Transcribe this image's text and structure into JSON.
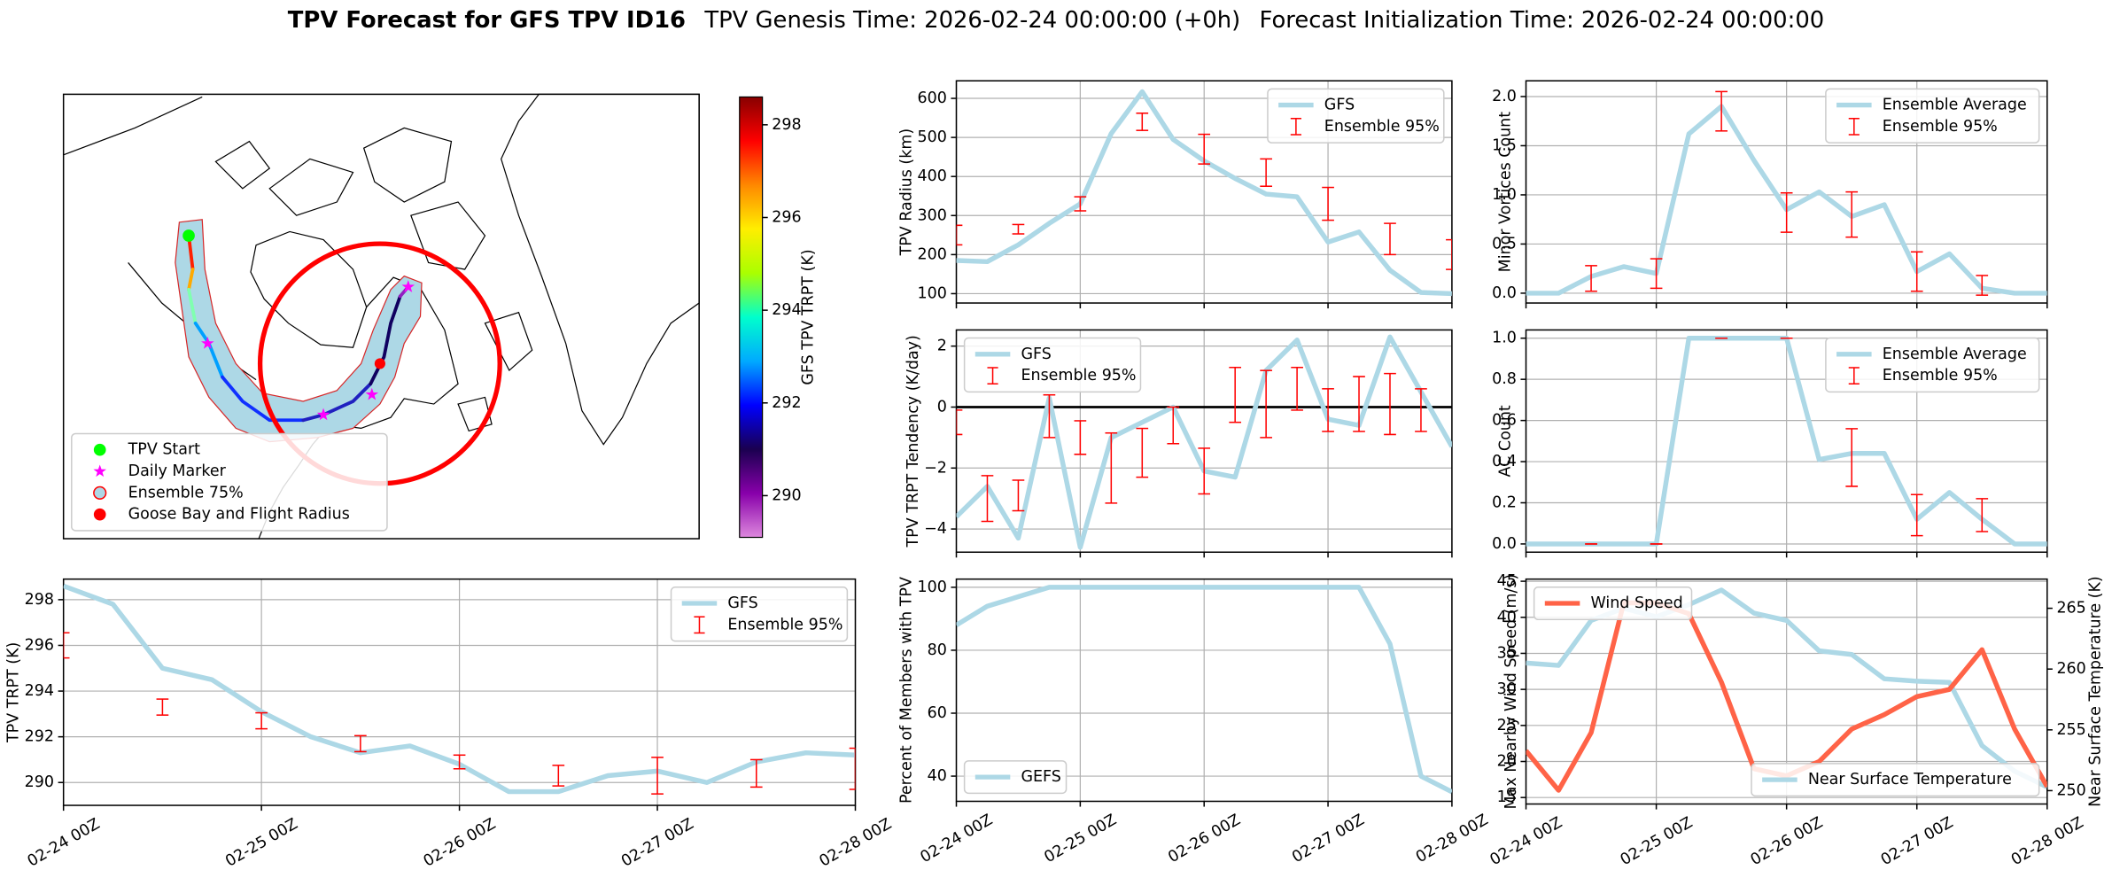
{
  "title_parts": [
    "TPV Forecast for GFS TPV ID16",
    "TPV Genesis Time: 2026-02-24 00:00:00 (+0h)",
    "Forecast Initialization Time: 2026-02-24 00:00:00"
  ],
  "chart_data": [
    {
      "type": "map",
      "legend": [
        {
          "label": "TPV Start",
          "color": "#00ff00",
          "marker": "circle"
        },
        {
          "label": "Daily Marker",
          "color": "#ff00ff",
          "marker": "star"
        },
        {
          "label": "Ensemble 75%",
          "color": "#add8e6",
          "edgecolor": "#ff0000",
          "marker": "circle"
        },
        {
          "label": "Goose Bay and Flight Radius",
          "color": "#ff0000",
          "marker": "circle"
        }
      ],
      "legend_corner": "lower left",
      "colorbar": {
        "label": "GFS TPV TRPT (K)",
        "lim": [
          289.1,
          298.6
        ],
        "ticks": [
          290,
          292,
          294,
          296,
          298
        ],
        "colors": [
          "#dd88dd",
          "#8800aa",
          "#1a0050",
          "#0000ff",
          "#00aaff",
          "#00ffcc",
          "#aaff00",
          "#ffee00",
          "#ff8800",
          "#ff0000",
          "#880000"
        ]
      }
    },
    {
      "type": "line",
      "ylabel": "TPV TRPT (K)",
      "xlim": [
        0,
        96
      ],
      "ylim": [
        289,
        298.9
      ],
      "xticks": [
        {
          "value": 0,
          "label": "02-24 00Z"
        },
        {
          "value": 24,
          "label": "02-25 00Z"
        },
        {
          "value": 48,
          "label": "02-26 00Z"
        },
        {
          "value": 72,
          "label": "02-27 00Z"
        },
        {
          "value": 96,
          "label": "02-28 00Z"
        }
      ],
      "yticks": [
        290,
        292,
        294,
        296,
        298
      ],
      "grid": true,
      "legend": "upper right",
      "x": [
        0,
        6,
        12,
        18,
        24,
        30,
        36,
        42,
        48,
        54,
        60,
        66,
        72,
        78,
        84,
        90,
        96
      ],
      "series": [
        {
          "name": "GFS",
          "color": "#add8e6",
          "values": [
            298.6,
            297.8,
            295,
            294.5,
            293.1,
            292,
            291.3,
            291.6,
            290.8,
            289.6,
            289.6,
            290.3,
            290.5,
            290,
            290.9,
            291.3,
            291.2
          ]
        }
      ],
      "errorbars": {
        "name": "Ensemble 95%",
        "color": "#ff0000",
        "x": [
          0,
          12,
          24,
          36,
          48,
          60,
          72,
          84,
          96
        ],
        "values": [
          296.0,
          293.3,
          292.7,
          291.7,
          290.9,
          290.3,
          290.3,
          290.4,
          290.6
        ],
        "errors": [
          0.55,
          0.35,
          0.35,
          0.35,
          0.3,
          0.45,
          0.8,
          0.6,
          0.9
        ]
      }
    },
    {
      "type": "line",
      "ylabel": "TPV Radius (km)",
      "xlim": [
        0,
        96
      ],
      "ylim": [
        76,
        645
      ],
      "xticks": [
        0,
        24,
        48,
        72,
        96
      ],
      "yticks": [
        100,
        200,
        300,
        400,
        500,
        600
      ],
      "grid": true,
      "legend": "upper right",
      "x": [
        0,
        6,
        12,
        18,
        24,
        30,
        36,
        42,
        48,
        54,
        60,
        66,
        72,
        78,
        84,
        90,
        96
      ],
      "series": [
        {
          "name": "GFS",
          "color": "#add8e6",
          "values": [
            185,
            182,
            225,
            280,
            330,
            510,
            617,
            495,
            440,
            395,
            355,
            348,
            232,
            258,
            160,
            103,
            100
          ]
        }
      ],
      "errorbars": {
        "name": "Ensemble 95%",
        "color": "#ff0000",
        "x": [
          0,
          12,
          24,
          36,
          48,
          60,
          72,
          84,
          96
        ],
        "values": [
          250,
          265,
          330,
          540,
          470,
          410,
          330,
          240,
          200
        ],
        "errors": [
          25,
          12,
          18,
          22,
          38,
          35,
          42,
          40,
          38
        ]
      }
    },
    {
      "type": "line",
      "ylabel": "TPV TRPT Tendency (K/day)",
      "xlim": [
        0,
        96
      ],
      "ylim": [
        -4.76,
        2.53
      ],
      "xticks": [
        0,
        24,
        48,
        72,
        96
      ],
      "yticks": [
        {
          "value": -4,
          "label": "−4"
        },
        {
          "value": -2,
          "label": "−2"
        },
        0,
        2
      ],
      "grid": true,
      "legend": "upper left",
      "zero_line": true,
      "x": [
        0,
        6,
        12,
        18,
        24,
        30,
        36,
        42,
        48,
        54,
        60,
        66,
        72,
        78,
        84,
        90,
        96
      ],
      "series": [
        {
          "name": "GFS",
          "color": "#add8e6",
          "values": [
            -3.6,
            -2.6,
            -4.3,
            0.3,
            -4.6,
            -1.0,
            -0.5,
            0.0,
            -2.1,
            -2.3,
            1.2,
            2.2,
            -0.4,
            -0.6,
            2.3,
            0.5,
            -1.3
          ]
        }
      ],
      "errorbars": {
        "name": "Ensemble 95%",
        "color": "#ff0000",
        "x": [
          0,
          6,
          12,
          18,
          24,
          30,
          36,
          42,
          48,
          54,
          60,
          66,
          72,
          78,
          84,
          90
        ],
        "values": [
          -0.5,
          -3.0,
          -2.9,
          -0.3,
          -1.0,
          -2.0,
          -1.5,
          -0.6,
          -2.1,
          0.4,
          0.1,
          0.6,
          -0.1,
          0.1,
          0.1,
          -0.1
        ],
        "errors": [
          0.4,
          0.75,
          0.5,
          0.7,
          0.55,
          1.15,
          0.8,
          0.6,
          0.75,
          0.9,
          1.1,
          0.7,
          0.7,
          0.9,
          1.0,
          0.7
        ]
      }
    },
    {
      "type": "line",
      "ylabel": "Percent of Members with TPV",
      "xlim": [
        0,
        96
      ],
      "ylim": [
        32,
        102.6
      ],
      "xticks": [
        {
          "value": 0,
          "label": "02-24 00Z"
        },
        {
          "value": 24,
          "label": "02-25 00Z"
        },
        {
          "value": 48,
          "label": "02-26 00Z"
        },
        {
          "value": 72,
          "label": "02-27 00Z"
        },
        {
          "value": 96,
          "label": "02-28 00Z"
        }
      ],
      "yticks": [
        40,
        60,
        80,
        100
      ],
      "grid": true,
      "legend": "lower left",
      "x": [
        0,
        6,
        12,
        18,
        24,
        30,
        36,
        42,
        48,
        54,
        60,
        66,
        72,
        78,
        84,
        90,
        96
      ],
      "series": [
        {
          "name": "GEFS",
          "color": "#add8e6",
          "values": [
            88,
            94,
            97,
            100,
            100,
            100,
            100,
            100,
            100,
            100,
            100,
            100,
            100,
            100,
            82,
            40,
            35
          ]
        }
      ]
    },
    {
      "type": "line",
      "ylabel": "Minor Vortices Count",
      "xlim": [
        0,
        96
      ],
      "ylim": [
        -0.1,
        2.16
      ],
      "xticks": [
        0,
        24,
        48,
        72,
        96
      ],
      "yticks": [
        {
          "value": 0,
          "label": "0.0"
        },
        0.5,
        {
          "value": 1,
          "label": "1.0"
        },
        1.5,
        {
          "value": 2,
          "label": "2.0"
        }
      ],
      "grid": true,
      "legend": "upper right",
      "x": [
        0,
        6,
        12,
        18,
        24,
        30,
        36,
        42,
        48,
        54,
        60,
        66,
        72,
        78,
        84,
        90,
        96
      ],
      "series": [
        {
          "name": "Ensemble Average",
          "color": "#add8e6",
          "values": [
            0,
            0,
            0.17,
            0.27,
            0.2,
            1.62,
            1.9,
            1.35,
            0.85,
            1.03,
            0.78,
            0.9,
            0.22,
            0.4,
            0.05,
            0,
            0
          ]
        }
      ],
      "errorbars": {
        "name": "Ensemble 95%",
        "color": "#ff0000",
        "x": [
          12,
          24,
          36,
          48,
          60,
          72,
          84
        ],
        "values": [
          0.15,
          0.2,
          1.85,
          0.82,
          0.8,
          0.22,
          0.08
        ],
        "errors": [
          0.13,
          0.15,
          0.2,
          0.2,
          0.23,
          0.2,
          0.1
        ]
      }
    },
    {
      "type": "line",
      "ylabel": "AC Count",
      "xlim": [
        0,
        96
      ],
      "ylim": [
        -0.04,
        1.04
      ],
      "xticks": [
        0,
        24,
        48,
        72,
        96
      ],
      "yticks": [
        {
          "value": 0,
          "label": "0.0"
        },
        0.2,
        0.4,
        0.6,
        0.8,
        {
          "value": 1,
          "label": "1.0"
        }
      ],
      "grid": true,
      "legend": "upper right",
      "x": [
        0,
        6,
        12,
        18,
        24,
        30,
        36,
        42,
        48,
        54,
        60,
        66,
        72,
        78,
        84,
        90,
        96
      ],
      "series": [
        {
          "name": "Ensemble Average",
          "color": "#add8e6",
          "values": [
            0,
            0,
            0,
            0,
            0,
            1,
            1,
            1,
            1,
            0.41,
            0.44,
            0.44,
            0.12,
            0.25,
            0.12,
            0,
            0
          ]
        }
      ],
      "errorbars": {
        "name": "Ensemble 95%",
        "color": "#ff0000",
        "x": [
          12,
          24,
          36,
          48,
          60,
          72,
          84
        ],
        "values": [
          0,
          0,
          1,
          1,
          0.42,
          0.14,
          0.14
        ],
        "errors": [
          0,
          0,
          0,
          0,
          0.14,
          0.1,
          0.08
        ]
      }
    },
    {
      "type": "line",
      "ylabel": "Max Nearby Wind Speed (m/s)",
      "ylabel_color": "#ff6347",
      "y2label": "Near Surface Temperature (K)",
      "y2label_color": "#4169e1",
      "xlim": [
        0,
        96
      ],
      "ylim": [
        14.1,
        45.3
      ],
      "y2lim": [
        248.9,
        267.4
      ],
      "xticks": [
        {
          "value": 0,
          "label": "02-24 00Z"
        },
        {
          "value": 24,
          "label": "02-25 00Z"
        },
        {
          "value": 48,
          "label": "02-26 00Z"
        },
        {
          "value": 72,
          "label": "02-27 00Z"
        },
        {
          "value": 96,
          "label": "02-28 00Z"
        }
      ],
      "yticks": [
        15,
        20,
        25,
        30,
        35,
        40,
        45
      ],
      "y2ticks": [
        250,
        255,
        260,
        265
      ],
      "grid": true,
      "x": [
        0,
        6,
        12,
        18,
        24,
        30,
        36,
        42,
        48,
        54,
        60,
        66,
        72,
        78,
        84,
        90,
        96
      ],
      "series": [
        {
          "name": "Near Surface Temperature",
          "color": "#add8e6",
          "axis": "y2",
          "legend": "lower right",
          "values": [
            260.5,
            260.3,
            264,
            265,
            264.3,
            265.3,
            266.5,
            264.6,
            264,
            261.5,
            261.2,
            259.2,
            259,
            258.9,
            253.7,
            251.6,
            250.3
          ]
        },
        {
          "name": "Wind Speed",
          "color": "#ff6347",
          "legend": "upper left",
          "values": [
            21.5,
            16,
            24,
            42,
            42,
            40.5,
            31,
            19,
            18,
            20,
            24.5,
            26.5,
            29,
            30,
            35.5,
            24.5,
            16.5
          ]
        }
      ]
    }
  ]
}
